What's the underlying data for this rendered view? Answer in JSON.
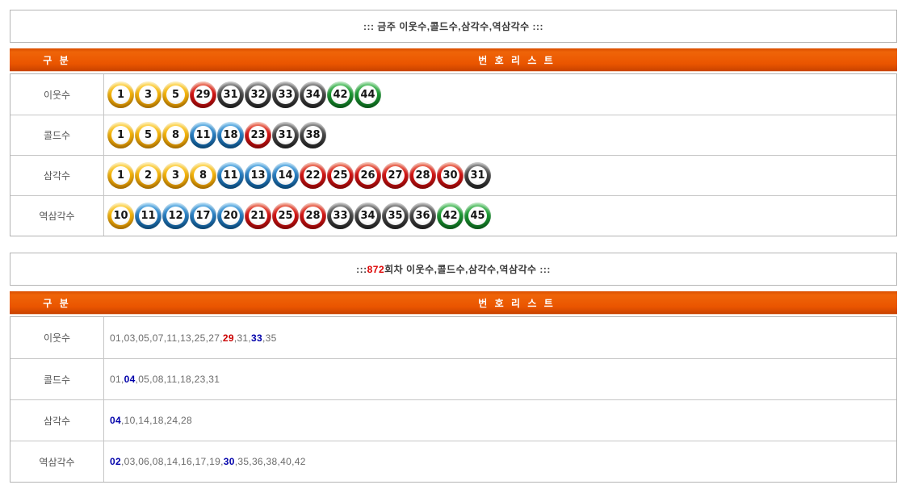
{
  "colors": {
    "header_orange": "#ea5500",
    "round_red": "#dd0000",
    "highlight_red": "#cc0000",
    "highlight_blue": "#0000aa",
    "ball_yellow": "#f5b40a",
    "ball_blue": "#2a80c4",
    "ball_red": "#d41414",
    "ball_gray": "#4a4a4a",
    "ball_green": "#1d9a34",
    "border_gray": "#b3b3b3"
  },
  "section_weekly": {
    "title": "::: 금주 이웃수,콜드수,삼각수,역삼각수 :::",
    "header": {
      "category": "구 분",
      "number_list": "번 호 리 스 트"
    },
    "rows": [
      {
        "label": "이웃수",
        "balls": [
          1,
          3,
          5,
          29,
          31,
          32,
          33,
          34,
          42,
          44
        ]
      },
      {
        "label": "콜드수",
        "balls": [
          1,
          5,
          8,
          11,
          18,
          23,
          31,
          38
        ]
      },
      {
        "label": "삼각수",
        "balls": [
          1,
          2,
          3,
          8,
          11,
          13,
          14,
          22,
          25,
          26,
          27,
          28,
          30,
          31
        ]
      },
      {
        "label": "역삼각수",
        "balls": [
          10,
          11,
          12,
          17,
          20,
          21,
          25,
          28,
          33,
          34,
          35,
          36,
          42,
          45
        ]
      }
    ]
  },
  "section_round": {
    "title_parts": [
      {
        "text": "::: ",
        "style": "normal"
      },
      {
        "text": "872",
        "style": "red"
      },
      {
        "text": " 회차 이웃수,콜드수,삼각수,역삼각수 :::",
        "style": "normal"
      }
    ],
    "header": {
      "category": "구 분",
      "number_list": "번 호 리 스 트"
    },
    "rows": [
      {
        "label": "이웃수",
        "numbers": [
          {
            "v": "01"
          },
          {
            "v": "03"
          },
          {
            "v": "05"
          },
          {
            "v": "07"
          },
          {
            "v": "11"
          },
          {
            "v": "13"
          },
          {
            "v": "25"
          },
          {
            "v": "27"
          },
          {
            "v": "29",
            "hl": "red"
          },
          {
            "v": "31"
          },
          {
            "v": "33",
            "hl": "blue"
          },
          {
            "v": "35"
          }
        ]
      },
      {
        "label": "콜드수",
        "numbers": [
          {
            "v": "01"
          },
          {
            "v": "04",
            "hl": "blue"
          },
          {
            "v": "05"
          },
          {
            "v": "08"
          },
          {
            "v": "11"
          },
          {
            "v": "18"
          },
          {
            "v": "23"
          },
          {
            "v": "31"
          }
        ]
      },
      {
        "label": "삼각수",
        "numbers": [
          {
            "v": "04",
            "hl": "blue"
          },
          {
            "v": "10"
          },
          {
            "v": "14"
          },
          {
            "v": "18"
          },
          {
            "v": "24"
          },
          {
            "v": "28"
          }
        ]
      },
      {
        "label": "역삼각수",
        "numbers": [
          {
            "v": "02",
            "hl": "blue"
          },
          {
            "v": "03"
          },
          {
            "v": "06"
          },
          {
            "v": "08"
          },
          {
            "v": "14"
          },
          {
            "v": "16"
          },
          {
            "v": "17"
          },
          {
            "v": "19"
          },
          {
            "v": "30",
            "hl": "blue"
          },
          {
            "v": "35"
          },
          {
            "v": "36"
          },
          {
            "v": "38"
          },
          {
            "v": "40"
          },
          {
            "v": "42"
          }
        ]
      }
    ]
  }
}
